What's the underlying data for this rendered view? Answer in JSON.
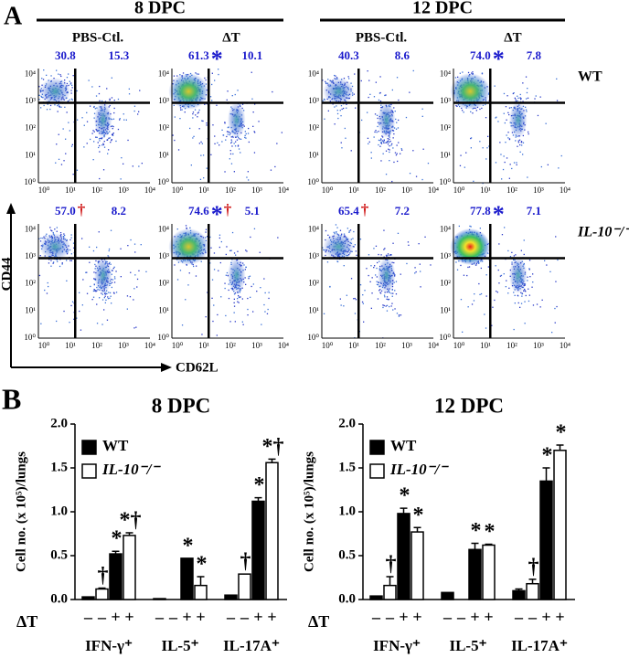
{
  "panel_a": {
    "label": "A",
    "timepoints": [
      {
        "title": "8 DPC",
        "columns": [
          "PBS-Ctl.",
          "ΔT"
        ]
      },
      {
        "title": "12 DPC",
        "columns": [
          "PBS-Ctl.",
          "ΔT"
        ]
      }
    ],
    "rows": [
      "WT",
      "IL-10⁻/⁻"
    ],
    "y_axis_label": "CD44",
    "x_axis_label": "CD62L",
    "tick_labels": [
      "10⁰",
      "10¹",
      "10²",
      "10³",
      "10⁴"
    ],
    "plots": [
      [
        {
          "left": "30.8",
          "right": "15.3"
        },
        {
          "left": "61.3",
          "left_marks": [
            "*"
          ],
          "right": "10.1"
        },
        {
          "left": "40.3",
          "right": "8.6"
        },
        {
          "left": "74.0",
          "left_marks": [
            "*"
          ],
          "right": "7.8"
        }
      ],
      [
        {
          "left": "57.0",
          "left_marks": [
            "†"
          ],
          "right": "8.2"
        },
        {
          "left": "74.6",
          "left_marks": [
            "*",
            "†"
          ],
          "right": "5.1"
        },
        {
          "left": "65.4",
          "left_marks": [
            "†"
          ],
          "right": "7.2"
        },
        {
          "left": "77.8",
          "left_marks": [
            "*"
          ],
          "right": "7.1"
        }
      ]
    ]
  },
  "panel_b_label": "B",
  "chart_data": [
    {
      "type": "bar",
      "title": "8 DPC",
      "y_label": "Cell no. (x 10⁵)/lungs",
      "categories": [
        "IFN-γ⁺",
        "IL-5⁺",
        "IL-17A⁺"
      ],
      "treatment_label": "ΔT",
      "treatments": [
        "–",
        "+"
      ],
      "ylim": [
        0,
        2
      ],
      "yticks": [
        {
          "value": 0,
          "label": "0.0"
        },
        {
          "value": 0.5,
          "label": "0.5"
        },
        {
          "value": 1,
          "label": "1.0"
        },
        {
          "value": 1.5,
          "label": "1.5"
        },
        {
          "value": 2,
          "label": "2.0"
        }
      ],
      "series": [
        {
          "name": "WT",
          "color": "#000000",
          "values": [
            [
              0.03,
              0.52
            ],
            [
              0.01,
              0.47
            ],
            [
              0.05,
              1.12
            ]
          ],
          "errors": [
            [
              null,
              0.03
            ],
            [
              null,
              null
            ],
            [
              null,
              0.04
            ]
          ],
          "markers": [
            [
              null,
              "*"
            ],
            [
              null,
              "*"
            ],
            [
              null,
              "*"
            ]
          ]
        },
        {
          "name": "IL-10⁻/⁻",
          "color": "#ffffff",
          "values": [
            [
              0.12,
              0.73
            ],
            [
              0,
              0.16
            ],
            [
              0.29,
              1.56
            ]
          ],
          "errors": [
            [
              0.01,
              0.03
            ],
            [
              null,
              0.1
            ],
            [
              null,
              0.04
            ]
          ],
          "markers": [
            [
              "†",
              "*†"
            ],
            [
              null,
              "*"
            ],
            [
              "†",
              "*†"
            ]
          ]
        }
      ]
    },
    {
      "type": "bar",
      "title": "12 DPC",
      "y_label": "Cell no. (x 10⁵)/lungs",
      "categories": [
        "IFN-γ⁺",
        "IL-5⁺",
        "IL-17A⁺"
      ],
      "treatment_label": "ΔT",
      "treatments": [
        "–",
        "+"
      ],
      "ylim": [
        0,
        2
      ],
      "yticks": [
        {
          "value": 0,
          "label": "0.0"
        },
        {
          "value": 0.5,
          "label": "0.5"
        },
        {
          "value": 1,
          "label": "1.0"
        },
        {
          "value": 1.5,
          "label": "1.5"
        },
        {
          "value": 2,
          "label": "2.0"
        }
      ],
      "series": [
        {
          "name": "WT",
          "color": "#000000",
          "values": [
            [
              0.04,
              0.98
            ],
            [
              0.08,
              0.57
            ],
            [
              0.1,
              1.35
            ]
          ],
          "errors": [
            [
              null,
              0.06
            ],
            [
              null,
              0.07
            ],
            [
              0.02,
              0.15
            ]
          ],
          "markers": [
            [
              null,
              "*"
            ],
            [
              null,
              "*"
            ],
            [
              null,
              "*"
            ]
          ]
        },
        {
          "name": "IL-10⁻/⁻",
          "color": "#ffffff",
          "values": [
            [
              0.16,
              0.77
            ],
            [
              0,
              0.62
            ],
            [
              0.18,
              1.7
            ]
          ],
          "errors": [
            [
              0.1,
              0.05
            ],
            [
              null,
              0.01
            ],
            [
              0.05,
              0.06
            ]
          ],
          "markers": [
            [
              "†",
              "*"
            ],
            [
              null,
              "*"
            ],
            [
              "†",
              "*"
            ]
          ]
        }
      ]
    }
  ]
}
